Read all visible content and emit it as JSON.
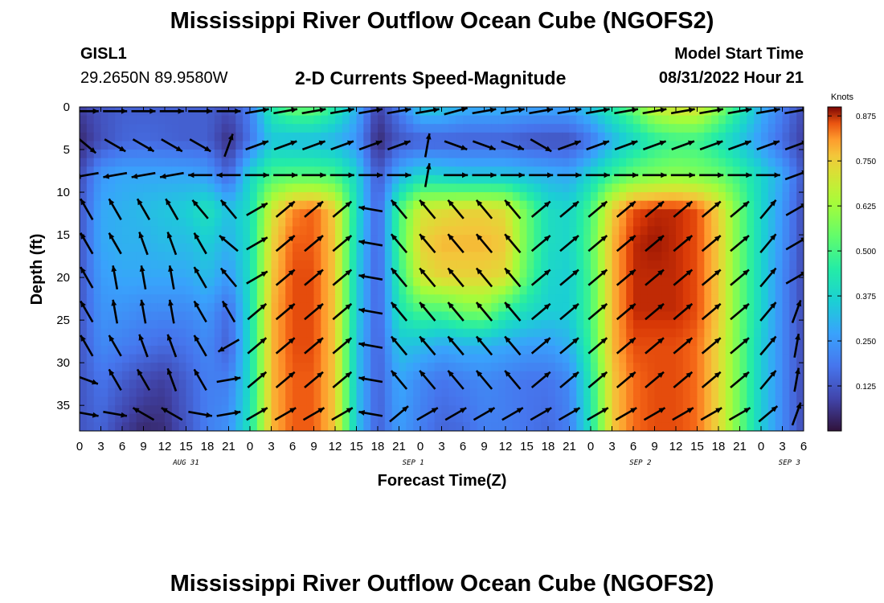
{
  "header": {
    "title": "Mississippi River Outflow Ocean Cube (NGOFS2)",
    "station_id": "GISL1",
    "station_location": "29.2650N  89.9580W",
    "subtitle": "2-D Currents Speed-Magnitude",
    "model_start_label": "Model Start Time",
    "model_start_value": "08/31/2022 Hour 21"
  },
  "footer": {
    "title": "Mississippi River Outflow Ocean Cube (NGOFS2)"
  },
  "chart_data": {
    "type": "heatmap",
    "xlabel": "Forecast Time(Z)",
    "ylabel": "Depth (ft)",
    "x_unit": "hours from 2022-08-31 00Z",
    "xlim": [
      0,
      102
    ],
    "ylim": [
      0,
      38
    ],
    "y_inverted": true,
    "x_ticks": [
      0,
      3,
      6,
      9,
      12,
      15,
      18,
      21,
      24,
      27,
      30,
      33,
      36,
      39,
      42,
      45,
      48,
      51,
      54,
      57,
      60,
      63,
      66,
      69,
      72,
      75,
      78,
      81,
      84,
      87,
      90,
      93,
      96,
      99,
      102
    ],
    "x_tick_labels": [
      "0",
      "3",
      "6",
      "9",
      "12",
      "15",
      "18",
      "21",
      "0",
      "3",
      "6",
      "9",
      "12",
      "15",
      "18",
      "21",
      "0",
      "3",
      "6",
      "9",
      "12",
      "15",
      "18",
      "21",
      "0",
      "3",
      "6",
      "9",
      "12",
      "15",
      "18",
      "21",
      "0",
      "3",
      "6"
    ],
    "y_ticks": [
      0,
      5,
      10,
      15,
      20,
      25,
      30,
      35
    ],
    "y_tick_labels": [
      "0",
      "5",
      "10",
      "15",
      "20",
      "25",
      "30",
      "35"
    ],
    "date_labels": [
      {
        "x": 15,
        "label": "AUG 31"
      },
      {
        "x": 47,
        "label": "SEP 1"
      },
      {
        "x": 79,
        "label": "SEP 2"
      },
      {
        "x": 100,
        "label": "SEP 3"
      }
    ],
    "colorbar": {
      "label": "Knots",
      "min": 0.0,
      "max": 0.9,
      "ticks": [
        0.125,
        0.25,
        0.375,
        0.5,
        0.625,
        0.75,
        0.875
      ],
      "tick_labels": [
        "0.125",
        "0.250",
        "0.375",
        "0.500",
        "0.625",
        "0.750",
        "0.875"
      ],
      "colormap": "turbo"
    },
    "z": {
      "x": [
        0,
        3,
        6,
        9,
        12,
        15,
        18,
        21,
        24,
        27,
        30,
        33,
        36,
        39,
        42,
        45,
        48,
        51,
        54,
        57,
        60,
        63,
        66,
        69,
        72,
        75,
        78,
        81,
        84,
        87,
        90,
        93,
        96,
        99,
        102
      ],
      "depths": [
        0,
        4,
        8,
        12,
        16,
        20,
        24,
        28,
        32,
        38
      ],
      "values": [
        [
          0.08,
          0.12,
          0.14,
          0.14,
          0.14,
          0.14,
          0.14,
          0.11,
          0.2,
          0.45,
          0.55,
          0.55,
          0.45,
          0.3,
          0.08,
          0.2,
          0.35,
          0.35,
          0.3,
          0.3,
          0.3,
          0.28,
          0.28,
          0.28,
          0.35,
          0.45,
          0.55,
          0.68,
          0.72,
          0.72,
          0.6,
          0.45,
          0.3,
          0.2,
          0.1
        ],
        [
          0.04,
          0.11,
          0.15,
          0.16,
          0.15,
          0.14,
          0.14,
          0.05,
          0.18,
          0.34,
          0.32,
          0.32,
          0.3,
          0.24,
          0.04,
          0.12,
          0.14,
          0.14,
          0.14,
          0.14,
          0.14,
          0.12,
          0.11,
          0.11,
          0.18,
          0.3,
          0.38,
          0.45,
          0.48,
          0.48,
          0.42,
          0.34,
          0.25,
          0.16,
          0.08
        ],
        [
          0.1,
          0.25,
          0.28,
          0.28,
          0.28,
          0.28,
          0.26,
          0.15,
          0.38,
          0.5,
          0.52,
          0.52,
          0.5,
          0.38,
          0.12,
          0.3,
          0.38,
          0.36,
          0.34,
          0.34,
          0.34,
          0.32,
          0.3,
          0.28,
          0.38,
          0.48,
          0.55,
          0.58,
          0.6,
          0.58,
          0.55,
          0.48,
          0.38,
          0.28,
          0.12
        ],
        [
          0.12,
          0.28,
          0.3,
          0.32,
          0.34,
          0.36,
          0.42,
          0.33,
          0.4,
          0.7,
          0.82,
          0.85,
          0.75,
          0.4,
          0.14,
          0.5,
          0.7,
          0.72,
          0.74,
          0.74,
          0.72,
          0.55,
          0.4,
          0.38,
          0.5,
          0.75,
          0.86,
          0.88,
          0.88,
          0.86,
          0.75,
          0.55,
          0.38,
          0.25,
          0.1
        ],
        [
          0.12,
          0.28,
          0.3,
          0.3,
          0.32,
          0.32,
          0.36,
          0.3,
          0.4,
          0.74,
          0.85,
          0.85,
          0.76,
          0.38,
          0.14,
          0.5,
          0.74,
          0.78,
          0.78,
          0.78,
          0.76,
          0.55,
          0.4,
          0.38,
          0.52,
          0.78,
          0.88,
          0.89,
          0.88,
          0.86,
          0.76,
          0.55,
          0.38,
          0.24,
          0.1
        ],
        [
          0.12,
          0.26,
          0.28,
          0.28,
          0.28,
          0.28,
          0.32,
          0.25,
          0.4,
          0.76,
          0.86,
          0.86,
          0.76,
          0.36,
          0.14,
          0.46,
          0.7,
          0.74,
          0.74,
          0.74,
          0.72,
          0.52,
          0.38,
          0.36,
          0.5,
          0.78,
          0.88,
          0.88,
          0.88,
          0.86,
          0.76,
          0.55,
          0.38,
          0.22,
          0.1
        ],
        [
          0.12,
          0.24,
          0.24,
          0.22,
          0.22,
          0.22,
          0.25,
          0.16,
          0.4,
          0.78,
          0.86,
          0.86,
          0.76,
          0.36,
          0.14,
          0.42,
          0.5,
          0.5,
          0.56,
          0.58,
          0.46,
          0.4,
          0.36,
          0.36,
          0.5,
          0.78,
          0.88,
          0.88,
          0.88,
          0.86,
          0.76,
          0.55,
          0.38,
          0.22,
          0.1
        ],
        [
          0.12,
          0.22,
          0.2,
          0.18,
          0.16,
          0.18,
          0.22,
          0.14,
          0.4,
          0.78,
          0.86,
          0.86,
          0.76,
          0.34,
          0.14,
          0.34,
          0.32,
          0.28,
          0.3,
          0.3,
          0.28,
          0.26,
          0.26,
          0.3,
          0.48,
          0.78,
          0.86,
          0.86,
          0.86,
          0.84,
          0.74,
          0.55,
          0.36,
          0.22,
          0.1
        ],
        [
          0.12,
          0.18,
          0.14,
          0.1,
          0.08,
          0.14,
          0.2,
          0.2,
          0.4,
          0.78,
          0.85,
          0.85,
          0.76,
          0.34,
          0.14,
          0.28,
          0.22,
          0.18,
          0.2,
          0.22,
          0.2,
          0.18,
          0.18,
          0.22,
          0.44,
          0.76,
          0.84,
          0.86,
          0.86,
          0.84,
          0.74,
          0.55,
          0.36,
          0.22,
          0.1
        ],
        [
          0.12,
          0.15,
          0.08,
          0.04,
          0.05,
          0.12,
          0.2,
          0.24,
          0.42,
          0.78,
          0.85,
          0.85,
          0.76,
          0.34,
          0.14,
          0.26,
          0.2,
          0.15,
          0.16,
          0.2,
          0.2,
          0.18,
          0.16,
          0.2,
          0.42,
          0.76,
          0.84,
          0.86,
          0.86,
          0.84,
          0.74,
          0.55,
          0.36,
          0.22,
          0.1
        ]
      ]
    },
    "vectors": {
      "times": [
        1,
        5,
        9,
        13,
        17,
        21,
        25,
        29,
        33,
        37,
        41,
        45,
        49,
        53,
        57,
        61,
        65,
        69,
        73,
        77,
        81,
        85,
        89,
        93,
        97,
        101
      ],
      "depths": [
        0.5,
        4.5,
        8,
        12,
        16,
        20,
        24,
        28,
        32,
        36
      ],
      "angles_deg": [
        [
          0,
          0,
          0,
          0,
          0,
          0,
          10,
          10,
          10,
          10,
          10,
          10,
          10,
          15,
          10,
          10,
          10,
          10,
          10,
          10,
          10,
          10,
          10,
          10,
          10,
          10
        ],
        [
          -40,
          -30,
          -30,
          -30,
          -30,
          70,
          20,
          20,
          20,
          20,
          20,
          20,
          80,
          -20,
          -20,
          -20,
          -30,
          20,
          20,
          20,
          20,
          20,
          20,
          20,
          20,
          20
        ],
        [
          -170,
          -170,
          -170,
          -170,
          180,
          180,
          0,
          0,
          0,
          0,
          0,
          0,
          80,
          0,
          0,
          0,
          0,
          0,
          0,
          0,
          0,
          0,
          0,
          0,
          0,
          20
        ],
        [
          120,
          120,
          120,
          120,
          130,
          130,
          30,
          40,
          40,
          40,
          170,
          130,
          130,
          130,
          130,
          130,
          40,
          40,
          40,
          40,
          40,
          40,
          40,
          40,
          50,
          30
        ],
        [
          120,
          120,
          110,
          110,
          120,
          140,
          30,
          40,
          40,
          40,
          170,
          130,
          130,
          130,
          130,
          130,
          40,
          40,
          40,
          40,
          40,
          40,
          40,
          40,
          50,
          30
        ],
        [
          120,
          100,
          100,
          100,
          120,
          130,
          30,
          40,
          40,
          40,
          170,
          130,
          130,
          130,
          130,
          130,
          40,
          40,
          40,
          40,
          40,
          40,
          40,
          40,
          50,
          30
        ],
        [
          120,
          100,
          100,
          100,
          120,
          120,
          40,
          40,
          40,
          40,
          170,
          130,
          130,
          130,
          130,
          130,
          40,
          40,
          40,
          40,
          40,
          40,
          40,
          40,
          50,
          70
        ],
        [
          120,
          120,
          110,
          110,
          120,
          210,
          40,
          40,
          40,
          40,
          170,
          130,
          130,
          130,
          130,
          130,
          40,
          40,
          40,
          40,
          40,
          40,
          40,
          40,
          50,
          80
        ],
        [
          -20,
          120,
          120,
          110,
          120,
          10,
          40,
          40,
          40,
          40,
          170,
          130,
          130,
          130,
          130,
          130,
          40,
          40,
          40,
          40,
          40,
          40,
          40,
          40,
          50,
          80
        ],
        [
          -10,
          -10,
          150,
          150,
          -10,
          10,
          30,
          30,
          30,
          30,
          170,
          40,
          30,
          30,
          30,
          30,
          30,
          30,
          30,
          30,
          30,
          30,
          30,
          30,
          40,
          70
        ]
      ]
    }
  }
}
